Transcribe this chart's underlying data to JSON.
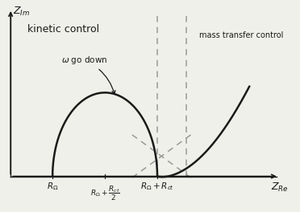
{
  "xlabel": "$Z_{Re}$",
  "ylabel": "$Z_{Im}$",
  "label_Ro": "$R_{\\Omega}$",
  "label_Ro_half": "$R_{\\Omega}+\\dfrac{R_{ct}}{2}$",
  "label_Ro_Rct": "$R_{\\Omega}+R_{ct}$",
  "text_kinetic": "kinetic control",
  "text_mass": "mass transfer control",
  "text_omega": "$\\omega$ go down",
  "bg_color": "#f0f0ea",
  "line_color": "#1a1a1a",
  "dashed_color": "#999999",
  "Ro": 1.0,
  "Rct": 2.5,
  "x_max": 6.5,
  "y_max": 2.6,
  "y_min": -0.5
}
